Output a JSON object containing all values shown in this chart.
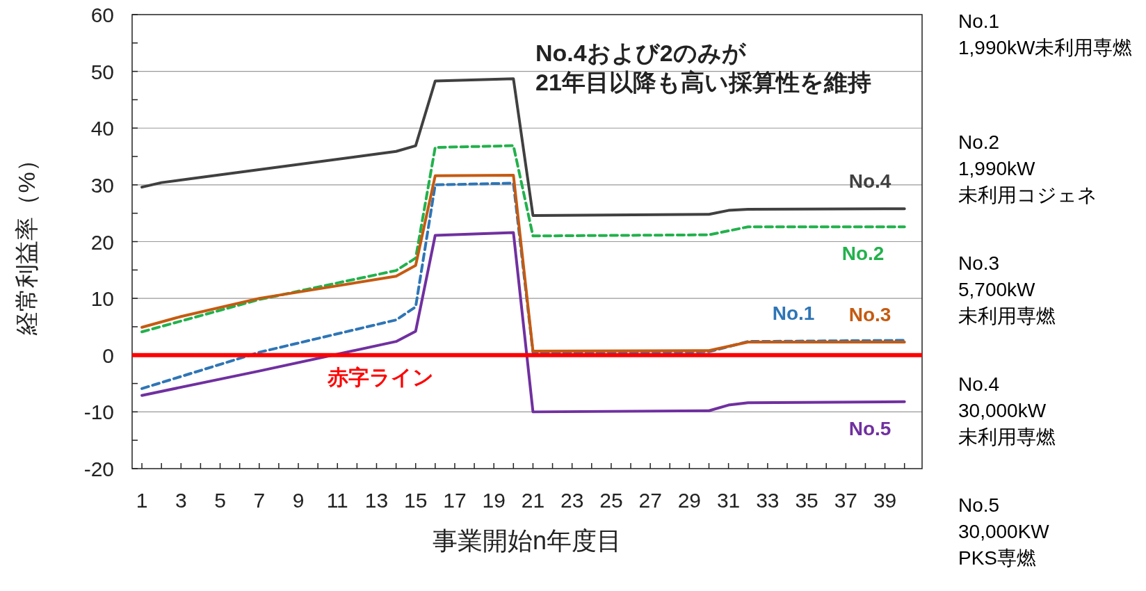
{
  "chart_data": {
    "type": "line",
    "ylabel": "経常利益率（%）",
    "xlabel": "事業開始n年度目",
    "xlim": [
      0.5,
      40.9
    ],
    "ylim": [
      -20,
      60
    ],
    "xticks": [
      1,
      {
        "value": 2,
        "label": null
      },
      3,
      {
        "value": 4,
        "label": null
      },
      5,
      {
        "value": 6,
        "label": null
      },
      7,
      {
        "value": 8,
        "label": null
      },
      9,
      {
        "value": 10,
        "label": null
      },
      11,
      {
        "value": 12,
        "label": null
      },
      13,
      {
        "value": 14,
        "label": null
      },
      15,
      {
        "value": 16,
        "label": null
      },
      17,
      {
        "value": 18,
        "label": null
      },
      19,
      {
        "value": 20,
        "label": null
      },
      21,
      {
        "value": 22,
        "label": null
      },
      23,
      {
        "value": 24,
        "label": null
      },
      25,
      {
        "value": 26,
        "label": null
      },
      27,
      {
        "value": 28,
        "label": null
      },
      29,
      {
        "value": 30,
        "label": null
      },
      31,
      {
        "value": 32,
        "label": null
      },
      33,
      {
        "value": 34,
        "label": null
      },
      35,
      {
        "value": 36,
        "label": null
      },
      37,
      {
        "value": 38,
        "label": null
      },
      39,
      {
        "value": 40,
        "label": null
      }
    ],
    "yticks": [
      -20,
      {
        "value": -15,
        "label": null
      },
      -10,
      {
        "value": -5,
        "label": null
      },
      0,
      {
        "value": 5,
        "label": null
      },
      10,
      {
        "value": 15,
        "label": null
      },
      20,
      {
        "value": 25,
        "label": null
      },
      30,
      {
        "value": 35,
        "label": null
      },
      40,
      {
        "value": 45,
        "label": null
      },
      50,
      {
        "value": 55,
        "label": null
      },
      60
    ],
    "grid": "y",
    "series": [
      {
        "name": "No.1",
        "color": "#2e75b6",
        "line_style": "dashed",
        "x": [
          1,
          7,
          14,
          15,
          16,
          20,
          21,
          30,
          32,
          40
        ],
        "values": [
          -5.9,
          0.5,
          6.2,
          8.5,
          30.0,
          30.3,
          0.5,
          0.6,
          2.4,
          2.6
        ]
      },
      {
        "name": "No.2",
        "color": "#22b14c",
        "line_style": "dashed",
        "x": [
          1,
          7,
          14,
          15,
          16,
          20,
          21,
          30,
          32,
          40
        ],
        "values": [
          4.1,
          9.8,
          14.9,
          17.1,
          36.6,
          36.9,
          21.0,
          21.2,
          22.6,
          22.6
        ]
      },
      {
        "name": "No.3",
        "color": "#c55a11",
        "line_style": "solid",
        "x": [
          1,
          3,
          7,
          14,
          15,
          16,
          20,
          21,
          30,
          32,
          40
        ],
        "values": [
          4.9,
          6.8,
          10.0,
          13.9,
          15.8,
          31.6,
          31.7,
          0.7,
          0.8,
          2.3,
          2.3
        ]
      },
      {
        "name": "No.4",
        "color": "#404040",
        "line_style": "solid",
        "x": [
          1,
          2,
          14,
          15,
          16,
          20,
          21,
          30,
          31,
          32,
          40
        ],
        "values": [
          29.6,
          30.4,
          35.9,
          36.9,
          48.3,
          48.7,
          24.6,
          24.8,
          25.5,
          25.7,
          25.8
        ]
      },
      {
        "name": "No.5",
        "color": "#7030a0",
        "line_style": "solid",
        "x": [
          1,
          7,
          14,
          15,
          16,
          20,
          21,
          30,
          31,
          32,
          40
        ],
        "values": [
          -7.1,
          -2.8,
          2.4,
          4.2,
          21.1,
          21.6,
          -10.0,
          -9.8,
          -8.8,
          -8.4,
          -8.2
        ]
      }
    ],
    "ref_lines": [
      {
        "axis": "y",
        "value": 0,
        "label": "赤字ライン",
        "color": "#ff0000"
      }
    ],
    "annotations": [
      "No.4および2のみが\n21年目以降も高い採算性を維持",
      "No.1\n1,990kW未利用専燃",
      "No.2\n1,990kW\n未利用コジェネ",
      "No.3\n5,700kW\n未利用専燃",
      "No.4\n30,000kW\n未利用専燃",
      "No.5\n30,000KW\nPKS専燃"
    ]
  }
}
